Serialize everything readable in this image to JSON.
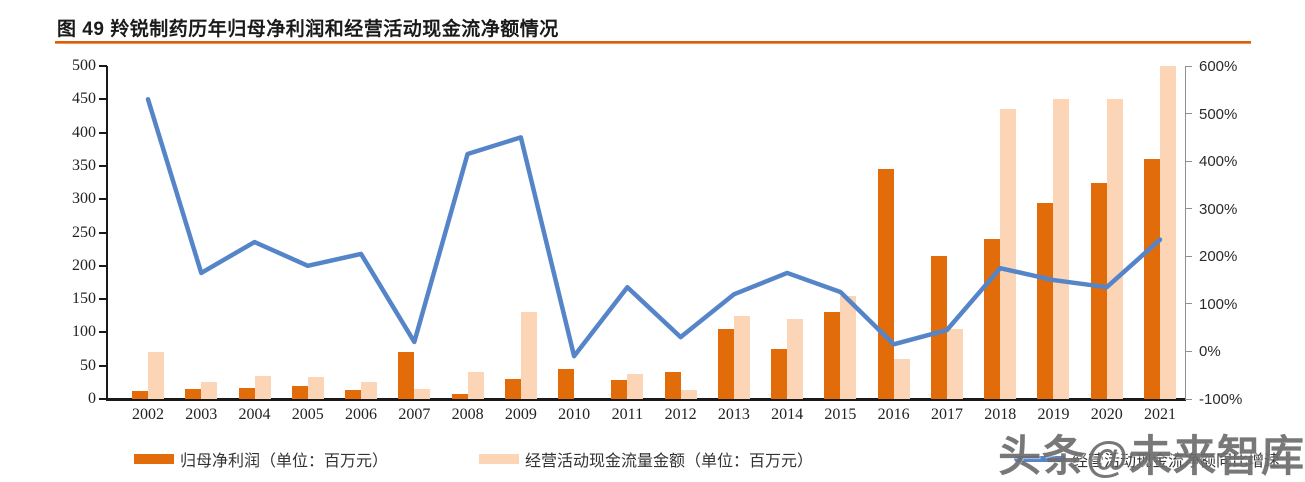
{
  "header": {
    "title": "图 49 羚锐制药历年归母净利润和经营活动现金流净额情况"
  },
  "watermark": "头条@未来智库",
  "chart_data": {
    "type": "bar",
    "subtype": "combo-bar-line-dual-axis",
    "categories": [
      "2002",
      "2003",
      "2004",
      "2005",
      "2006",
      "2007",
      "2008",
      "2009",
      "2010",
      "2011",
      "2012",
      "2013",
      "2014",
      "2015",
      "2016",
      "2017",
      "2018",
      "2019",
      "2020",
      "2021"
    ],
    "series": [
      {
        "name": "归母净利润（单位：百万元）",
        "type": "bar",
        "axis": "left",
        "color": "#E36C0A",
        "values": [
          12,
          15,
          16,
          20,
          13,
          70,
          8,
          30,
          45,
          28,
          40,
          105,
          75,
          130,
          345,
          215,
          240,
          295,
          325,
          360
        ]
      },
      {
        "name": "经营活动现金流量金额（单位：百万元）",
        "type": "bar",
        "axis": "left",
        "color": "#FBD5B5",
        "values": [
          70,
          25,
          35,
          33,
          26,
          15,
          40,
          130,
          0,
          38,
          14,
          125,
          120,
          155,
          60,
          105,
          435,
          450,
          450,
          500
        ]
      },
      {
        "name": "经营活动现金流净额同比增速",
        "type": "line",
        "axis": "right",
        "color": "#5585C8",
        "values": [
          530,
          165,
          230,
          180,
          205,
          20,
          415,
          450,
          -10,
          135,
          30,
          120,
          165,
          125,
          15,
          45,
          175,
          150,
          135,
          235
        ]
      }
    ],
    "left_axis": {
      "min": 0,
      "max": 500,
      "step": 50,
      "ticks": [
        "0",
        "50",
        "100",
        "150",
        "200",
        "250",
        "300",
        "350",
        "400",
        "450",
        "500"
      ]
    },
    "right_axis": {
      "min": -100,
      "max": 600,
      "step": 100,
      "ticks": [
        "-100%",
        "0%",
        "100%",
        "200%",
        "300%",
        "400%",
        "500%",
        "600%"
      ]
    },
    "grid": false,
    "legend_position": "bottom"
  }
}
